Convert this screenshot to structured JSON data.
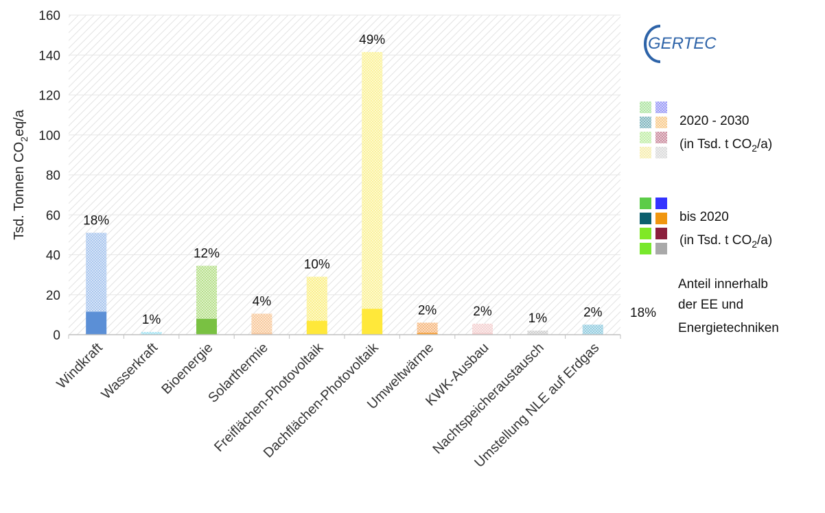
{
  "chart_data": {
    "type": "bar",
    "stacked": true,
    "ylabel_main": "Tsd. Tonnen CO",
    "ylabel_sub": "2",
    "ylabel_tail": "eq/a",
    "ylim": [
      0,
      160
    ],
    "yticks": [
      0,
      20,
      40,
      60,
      80,
      100,
      120,
      140,
      160
    ],
    "grid": true,
    "categories": [
      "Windkraft",
      "Wasserkraft",
      "Bioenergie",
      "Solarthermie",
      "Freiflächen-Photovoltaik",
      "Dachflächen-Photovoltaik",
      "Umweltwärme",
      "KWK-Ausbau",
      "Nachtspeicheraustausch",
      "Umstellung NLE auf Erdgas"
    ],
    "percent_labels": [
      "18%",
      "1%",
      "12%",
      "4%",
      "10%",
      "49%",
      "2%",
      "2%",
      "1%",
      "2%"
    ],
    "series": [
      {
        "legend": "bis 2020",
        "values": [
          11.5,
          0.3,
          8,
          1,
          7,
          13,
          1,
          1,
          0.3,
          0.3
        ]
      },
      {
        "legend": "2020 - 2030",
        "values": [
          39.5,
          1,
          26.5,
          9.5,
          22,
          128.5,
          5,
          4.5,
          1.7,
          4.7
        ]
      }
    ],
    "colors_solid": [
      "#5b8fd6",
      "#56d6f0",
      "#79c142",
      "#f5c7a0",
      "#ffe83a",
      "#ffe83a",
      "#f5a23d",
      "#f3cfcf",
      "#c8c8c8",
      "#7ec4dc"
    ],
    "colors_hatched": [
      "#a9c6ee",
      "#9fe3f3",
      "#b7e08c",
      "#f8c99c",
      "#fbf08a",
      "#fbf29a",
      "#f6b980",
      "#f4d2d2",
      "#cfcfcf",
      "#93cde0"
    ]
  },
  "logo": {
    "text": "GERTEC"
  },
  "legend": {
    "period1_line1": "2020 - 2030",
    "period1_line2_main": "(in Tsd. t CO",
    "period1_line2_sub": "2",
    "period1_line2_tail": "/a)",
    "period2_line1": "bis 2020",
    "period2_line2_main": "(in Tsd. t CO",
    "period2_line2_sub": "2",
    "period2_line2_tail": "/a)",
    "share_example": "18%",
    "share_line1": "Anteil innerhalb",
    "share_line2": "der EE und",
    "share_line3": "Energietechniken",
    "swatches_hatched": [
      "#6fcf5a",
      "#4a4af0",
      "#1a7a8a",
      "#f2a030",
      "#8fe060",
      "#a03050",
      "#f0e070",
      "#bdbdbd"
    ],
    "swatches_solid": [
      "#5ccc48",
      "#3333ff",
      "#0c5f6e",
      "#f0960f",
      "#80e826",
      "#8b1f3c",
      "#78e82c",
      "#a9a9a9"
    ]
  }
}
